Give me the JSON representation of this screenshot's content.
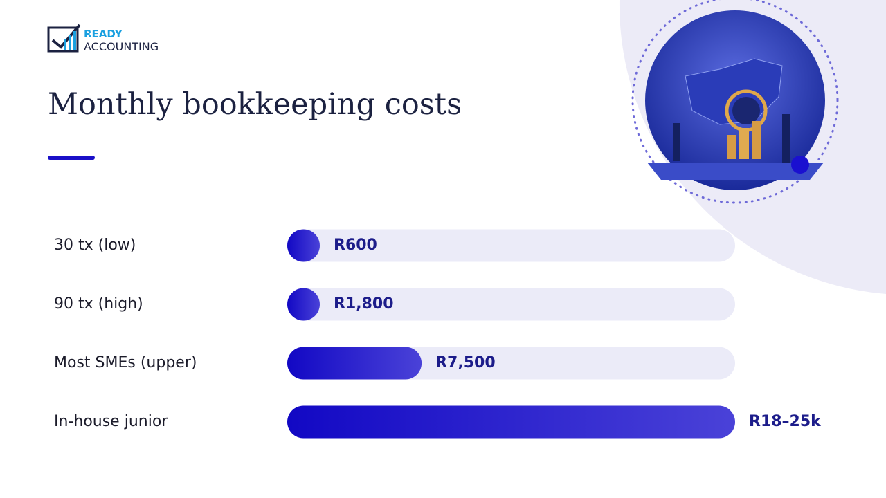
{
  "logo": {
    "line1": "READY",
    "line2": "ACCOUNTING"
  },
  "chart_data": {
    "type": "bar",
    "title": "Monthly bookkeeping costs",
    "categories": [
      "30 tx (low)",
      "90 tx (high)",
      "Most SMEs (upper)",
      "In-house junior"
    ],
    "values": [
      600,
      1800,
      7500,
      25000
    ],
    "value_labels": [
      "R600",
      "R1,800",
      "R7,500",
      "R18–25k"
    ],
    "color": "#1a10c8"
  }
}
